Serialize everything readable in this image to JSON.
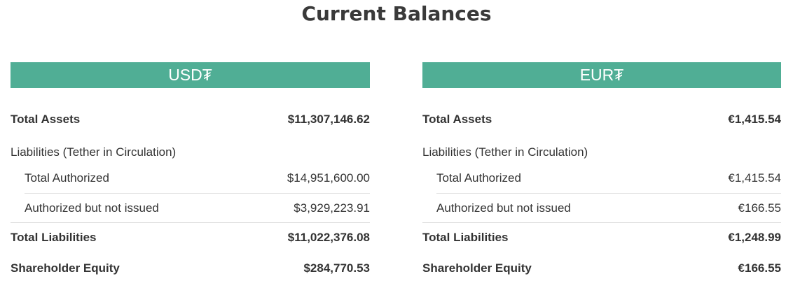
{
  "title": "Current Balances",
  "panels": [
    {
      "currency": "USD₮",
      "total_assets_label": "Total Assets",
      "total_assets": "$11,307,146.62",
      "liabilities_label": "Liabilities (Tether in Circulation)",
      "total_authorized_label": "Total Authorized",
      "total_authorized": "$14,951,600.00",
      "authorized_not_issued_label": "Authorized but not issued",
      "authorized_not_issued": "$3,929,223.91",
      "total_liabilities_label": "Total Liabilities",
      "total_liabilities": "$11,022,376.08",
      "shareholder_equity_label": "Shareholder Equity",
      "shareholder_equity": "$284,770.53"
    },
    {
      "currency": "EUR₮",
      "total_assets_label": "Total Assets",
      "total_assets": "€1,415.54",
      "liabilities_label": "Liabilities (Tether in Circulation)",
      "total_authorized_label": "Total Authorized",
      "total_authorized": "€1,415.54",
      "authorized_not_issued_label": "Authorized but not issued",
      "authorized_not_issued": "€166.55",
      "total_liabilities_label": "Total Liabilities",
      "total_liabilities": "€1,248.99",
      "shareholder_equity_label": "Shareholder Equity",
      "shareholder_equity": "€166.55"
    }
  ],
  "colors": {
    "header_bg": "#50ae95",
    "text": "#333333"
  }
}
